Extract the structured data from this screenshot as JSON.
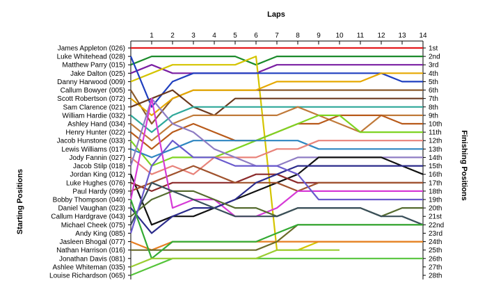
{
  "chart_data": {
    "type": "line",
    "title": "Laps",
    "xlabel": "Laps",
    "ylabel_left": "Starting Positions",
    "ylabel_right": "Finishing Positions",
    "x": [
      0,
      1,
      2,
      3,
      4,
      5,
      6,
      7,
      8,
      9,
      10,
      11,
      12,
      13,
      14
    ],
    "x_ticks": [
      1,
      2,
      3,
      4,
      5,
      6,
      7,
      8,
      9,
      10,
      11,
      12,
      13,
      14
    ],
    "ylim": [
      1,
      28
    ],
    "y_inverted": true,
    "grid": false,
    "drivers": [
      "James Appleton (026)",
      "Luke Whitehead (028)",
      "Matthew Parry (015)",
      "Jake Dalton (025)",
      "Danny Harwood (009)",
      "Callum Bowyer (005)",
      "Scott Robertson (072)",
      "Sam Clarence (021)",
      "William Hardie (032)",
      "Ashley Hand (034)",
      "Henry Hunter (022)",
      "Jacob Hunstone (033)",
      "Lewis Williams (017)",
      "Jody Fannin (027)",
      "Jacob Stilp (018)",
      "Jordan King (012)",
      "Luke Hughes (076)",
      "Paul Hardy (099)",
      "Bobby Thompson (040)",
      "Daniel Vaughan (023)",
      "Callum Hardgrave (043)",
      "Michael Cheek (075)",
      "Andy King (085)",
      "Jasleen Bhogal (077)",
      "Nathan Harrison (016)",
      "Jonathan Davis (081)",
      "Ashlee Whiteman (035)",
      "Louise Richardson (065)"
    ],
    "finishing": [
      "1st",
      "2nd",
      "3rd",
      "4th",
      "5th",
      "6th",
      "7th",
      "8th",
      "9th",
      "10th",
      "11th",
      "12th",
      "13th",
      "14th",
      "15th",
      "16th",
      "17th",
      "18th",
      "19th",
      "20th",
      "21st",
      "22nd",
      "23rd",
      "24th",
      "25th",
      "26th",
      "27th",
      "28th"
    ],
    "series": [
      {
        "color": "#e41a1c",
        "values": [
          1,
          1,
          1,
          1,
          1,
          1,
          1,
          1,
          1,
          1,
          1,
          1,
          1,
          1,
          1
        ]
      },
      {
        "color": "#1a8a2a",
        "values": [
          3,
          2,
          2,
          2,
          2,
          2,
          3,
          2,
          2,
          2,
          2,
          2,
          2,
          2,
          2
        ]
      },
      {
        "color": "#7a1fa2",
        "values": [
          4,
          3,
          4,
          4,
          4,
          4,
          4,
          3,
          3,
          3,
          3,
          3,
          3,
          3,
          3
        ]
      },
      {
        "color": "#d4c400",
        "values": [
          5,
          4,
          3,
          3,
          3,
          3,
          2,
          25,
          25,
          24,
          24,
          24,
          24,
          24,
          24
        ]
      },
      {
        "color": "#1f3fbf",
        "values": [
          2,
          8,
          5,
          4,
          4,
          4,
          4,
          4,
          4,
          4,
          4,
          4,
          4,
          5,
          5
        ]
      },
      {
        "color": "#8b5a2b",
        "values": [
          6,
          10,
          7,
          6,
          6,
          6,
          6,
          6,
          6,
          6,
          6,
          6,
          6,
          6,
          6
        ]
      },
      {
        "color": "#e6a800",
        "values": [
          7,
          9,
          7,
          6,
          6,
          6,
          6,
          5,
          5,
          5,
          5,
          5,
          4,
          4,
          4
        ]
      },
      {
        "color": "#6b3a1f",
        "values": [
          8,
          7,
          6,
          8,
          9,
          7,
          7,
          7,
          7,
          7,
          7,
          7,
          7,
          7,
          7
        ]
      },
      {
        "color": "#2fa89a",
        "values": [
          9,
          11,
          9,
          8,
          8,
          8,
          8,
          8,
          8,
          8,
          8,
          8,
          8,
          8,
          8
        ]
      },
      {
        "color": "#c07a3a",
        "values": [
          10,
          12,
          10,
          9,
          9,
          9,
          9,
          9,
          8,
          9,
          10,
          11,
          9,
          9,
          9
        ]
      },
      {
        "color": "#b85a1a",
        "values": [
          11,
          13,
          11,
          10,
          11,
          12,
          12,
          11,
          10,
          10,
          9,
          9,
          9,
          10,
          10
        ]
      },
      {
        "color": "#7ed321",
        "values": [
          12,
          15,
          14,
          14,
          14,
          13,
          12,
          11,
          10,
          9,
          9,
          11,
          11,
          11,
          11
        ]
      },
      {
        "color": "#2e86c1",
        "values": [
          13,
          14,
          13,
          12,
          12,
          12,
          12,
          12,
          12,
          13,
          13,
          13,
          13,
          13,
          13
        ]
      },
      {
        "color": "#e8837a",
        "values": [
          14,
          16,
          15,
          16,
          14,
          14,
          14,
          13,
          13,
          12,
          12,
          12,
          12,
          12,
          12
        ]
      },
      {
        "color": "#8e7cc3",
        "values": [
          15,
          7,
          10,
          11,
          13,
          14,
          15,
          15,
          14,
          14,
          14,
          14,
          14,
          14,
          14
        ]
      },
      {
        "color": "#111111",
        "values": [
          16,
          22,
          21,
          21,
          20,
          19,
          18,
          17,
          16,
          14,
          14,
          14,
          14,
          15,
          16
        ]
      },
      {
        "color": "#8b2a2a",
        "values": [
          17,
          18,
          17,
          17,
          17,
          17,
          16,
          16,
          17,
          17,
          17,
          17,
          17,
          17,
          17
        ]
      },
      {
        "color": "#a0522d",
        "values": [
          18,
          17,
          16,
          15,
          16,
          17,
          17,
          17,
          18,
          17,
          17,
          17,
          17,
          17,
          17
        ]
      },
      {
        "color": "#d63ad6",
        "values": [
          19,
          7,
          20,
          19,
          19,
          21,
          21,
          20,
          18,
          18,
          18,
          18,
          18,
          18,
          18
        ]
      },
      {
        "color": "#2b2b8b",
        "values": [
          20,
          23,
          21,
          20,
          20,
          19,
          17,
          16,
          15,
          15,
          15,
          15,
          15,
          15,
          15
        ]
      },
      {
        "color": "#556b2f",
        "values": [
          21,
          19,
          18,
          18,
          19,
          20,
          20,
          21,
          20,
          20,
          20,
          20,
          21,
          20,
          20
        ]
      },
      {
        "color": "#3a4f5a",
        "values": [
          22,
          17,
          18,
          19,
          20,
          21,
          21,
          21,
          20,
          20,
          20,
          20,
          21,
          21,
          22
        ]
      },
      {
        "color": "#6a5acd",
        "values": [
          23,
          15,
          12,
          14,
          14,
          15,
          15,
          15,
          16,
          19,
          19,
          19,
          19,
          19,
          19
        ]
      },
      {
        "color": "#e67e22",
        "values": [
          24,
          25,
          24,
          24,
          24,
          24,
          24,
          24,
          24,
          24,
          24,
          24,
          24,
          24,
          24
        ]
      },
      {
        "color": "#6b6b2a",
        "values": [
          25,
          25,
          25,
          25,
          25,
          25,
          25,
          24,
          22,
          22,
          22,
          22,
          22,
          22,
          22
        ]
      },
      {
        "color": "#33aa33",
        "values": [
          19,
          26,
          24,
          24,
          24,
          24,
          24,
          23,
          22,
          22,
          22,
          22,
          22,
          22,
          22
        ]
      },
      {
        "color": "#55c43a",
        "values": [
          28,
          27,
          26,
          26,
          26,
          26,
          26,
          26,
          26,
          26,
          26,
          26,
          26,
          26,
          26
        ]
      },
      {
        "color": "#9acd32",
        "values": [
          27,
          26,
          26,
          26,
          26,
          26,
          26,
          25,
          25,
          25,
          25,
          null,
          null,
          null,
          null
        ]
      }
    ]
  }
}
